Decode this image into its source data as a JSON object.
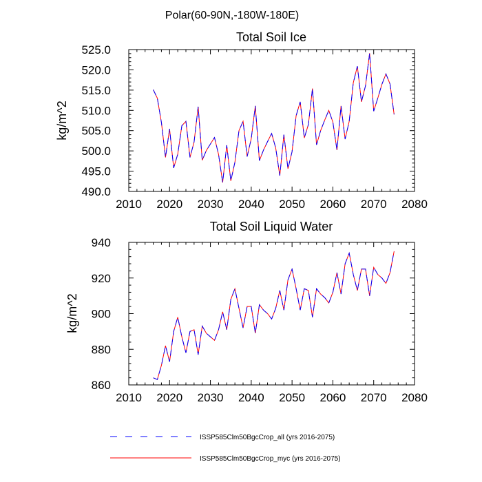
{
  "figure": {
    "suptitle": "Polar(60-90N,-180W-180E)",
    "legend": [
      {
        "label": "ISSP585Clm50BgcCrop_all (yrs 2016-2075)",
        "color": "#0000ff",
        "style": "dashed"
      },
      {
        "label": "ISSP585Clm50BgcCrop_myc (yrs 2016-2075)",
        "color": "#ff0000",
        "style": "solid"
      }
    ]
  },
  "chart_data": [
    {
      "type": "line",
      "title": "Total Soil Ice",
      "xlabel": "",
      "ylabel": "kg/m^2",
      "xlim": [
        2010,
        2080
      ],
      "ylim": [
        490,
        525
      ],
      "xticks": [
        2010,
        2020,
        2030,
        2040,
        2050,
        2060,
        2070,
        2080
      ],
      "yticks": [
        490,
        495,
        500,
        505,
        510,
        515,
        520,
        525
      ],
      "yticklabels": [
        "490.0",
        "495.0",
        "500.0",
        "505.0",
        "510.0",
        "515.0",
        "520.0",
        "525.0"
      ],
      "grid": false,
      "x": [
        2016,
        2017,
        2018,
        2019,
        2020,
        2021,
        2022,
        2023,
        2024,
        2025,
        2026,
        2027,
        2028,
        2029,
        2030,
        2031,
        2032,
        2033,
        2034,
        2035,
        2036,
        2037,
        2038,
        2039,
        2040,
        2041,
        2042,
        2043,
        2044,
        2045,
        2046,
        2047,
        2048,
        2049,
        2050,
        2051,
        2052,
        2053,
        2054,
        2055,
        2056,
        2057,
        2058,
        2059,
        2060,
        2061,
        2062,
        2063,
        2064,
        2065,
        2066,
        2067,
        2068,
        2069,
        2070,
        2071,
        2072,
        2073,
        2074,
        2075
      ],
      "series": [
        {
          "name": "ISSP585Clm50BgcCrop_all (yrs 2016-2075)",
          "color": "#0000ff",
          "values": [
            515.1,
            513.0,
            507.0,
            498.4,
            505.4,
            495.8,
            499.2,
            506.2,
            507.3,
            498.4,
            502.2,
            510.9,
            497.7,
            500.1,
            501.7,
            503.3,
            499.1,
            492.2,
            501.4,
            492.6,
            497.2,
            505.0,
            507.3,
            498.6,
            503.0,
            511.1,
            497.6,
            500.2,
            502.3,
            504.3,
            500.7,
            493.9,
            504.0,
            495.6,
            499.8,
            508.7,
            512.1,
            503.2,
            506.5,
            515.4,
            501.5,
            505.0,
            507.6,
            510.0,
            507.1,
            500.2,
            511.1,
            502.9,
            507.3,
            516.8,
            520.9,
            512.1,
            516.1,
            524.1,
            509.8,
            513.0,
            516.4,
            519.0,
            516.5,
            509.0
          ]
        },
        {
          "name": "ISSP585Clm50BgcCrop_myc (yrs 2016-2075)",
          "color": "#ff0000",
          "values": [
            515.1,
            513.0,
            507.0,
            498.4,
            505.4,
            495.8,
            499.2,
            506.2,
            507.3,
            498.4,
            502.2,
            510.9,
            497.7,
            500.1,
            501.7,
            503.3,
            499.1,
            492.2,
            501.4,
            492.6,
            497.2,
            505.0,
            507.3,
            498.6,
            503.0,
            511.1,
            497.6,
            500.2,
            502.3,
            504.3,
            500.7,
            493.9,
            504.0,
            495.6,
            499.8,
            508.7,
            512.1,
            503.2,
            506.5,
            515.4,
            501.5,
            505.0,
            507.6,
            510.0,
            507.1,
            500.2,
            511.1,
            502.9,
            507.3,
            516.8,
            520.9,
            512.1,
            516.1,
            524.1,
            509.8,
            513.0,
            516.4,
            519.0,
            516.5,
            509.0
          ]
        }
      ]
    },
    {
      "type": "line",
      "title": "Total Soil Liquid Water",
      "xlabel": "",
      "ylabel": "kg/m^2",
      "xlim": [
        2010,
        2080
      ],
      "ylim": [
        860,
        940
      ],
      "xticks": [
        2010,
        2020,
        2030,
        2040,
        2050,
        2060,
        2070,
        2080
      ],
      "yticks": [
        860,
        880,
        900,
        920,
        940
      ],
      "yticklabels": [
        "860",
        "880",
        "900",
        "920",
        "940"
      ],
      "grid": false,
      "x": [
        2016,
        2017,
        2018,
        2019,
        2020,
        2021,
        2022,
        2023,
        2024,
        2025,
        2026,
        2027,
        2028,
        2029,
        2030,
        2031,
        2032,
        2033,
        2034,
        2035,
        2036,
        2037,
        2038,
        2039,
        2040,
        2041,
        2042,
        2043,
        2044,
        2045,
        2046,
        2047,
        2048,
        2049,
        2050,
        2051,
        2052,
        2053,
        2054,
        2055,
        2056,
        2057,
        2058,
        2059,
        2060,
        2061,
        2062,
        2063,
        2064,
        2065,
        2066,
        2067,
        2068,
        2069,
        2070,
        2071,
        2072,
        2073,
        2074,
        2075
      ],
      "series": [
        {
          "name": "ISSP585Clm50BgcCrop_all (yrs 2016-2075)",
          "color": "#0000ff",
          "values": [
            864,
            863,
            871,
            882,
            873,
            890,
            898,
            887,
            878,
            890,
            891,
            877,
            893,
            889,
            887,
            885,
            891,
            901,
            891,
            908,
            914,
            903,
            892,
            904,
            904,
            889,
            905,
            902,
            900,
            897,
            903,
            913,
            902,
            919,
            925,
            914,
            902,
            914,
            913,
            898,
            914,
            911,
            909,
            906,
            912,
            923,
            911,
            928,
            934,
            922,
            913,
            925,
            925,
            910,
            926,
            922,
            920,
            917,
            923,
            935
          ]
        },
        {
          "name": "ISSP585Clm50BgcCrop_myc (yrs 2016-2075)",
          "color": "#ff0000",
          "values": [
            864,
            863,
            871,
            882,
            873,
            890,
            898,
            887,
            878,
            890,
            891,
            877,
            893,
            889,
            887,
            885,
            891,
            901,
            891,
            908,
            914,
            903,
            892,
            904,
            904,
            889,
            905,
            902,
            900,
            897,
            903,
            913,
            902,
            919,
            925,
            914,
            902,
            914,
            913,
            898,
            914,
            911,
            909,
            906,
            912,
            923,
            911,
            928,
            934,
            922,
            913,
            925,
            925,
            910,
            926,
            922,
            920,
            917,
            923,
            935
          ]
        }
      ]
    }
  ]
}
